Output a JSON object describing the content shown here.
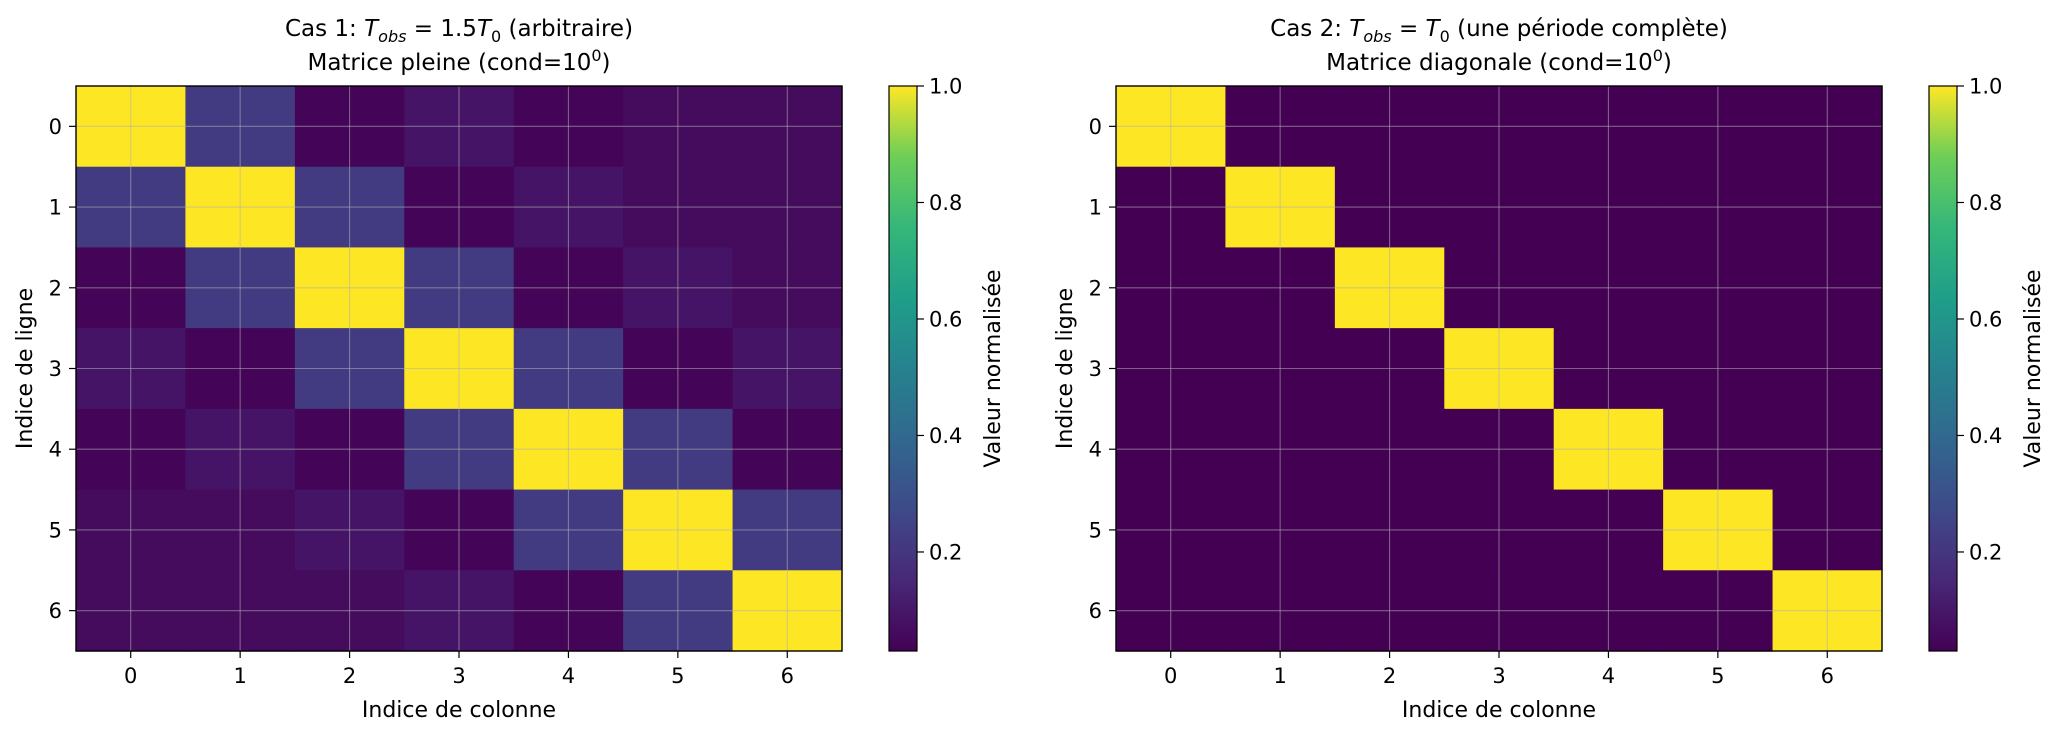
{
  "figure": {
    "background": "#ffffff",
    "grid_color": "#b0b0b0"
  },
  "chart_data": [
    {
      "type": "heatmap",
      "title": {
        "prefix": "Cas 1: ",
        "var": "T",
        "var_sub": "obs",
        "op": " = ",
        "value": "1.5",
        "var2": "T",
        "var2_sub": "0",
        "suffix": " (arbitraire)"
      },
      "subtitle": {
        "prefix": "Matrice pleine (cond=10",
        "exponent": "0",
        "suffix": ")"
      },
      "xlabel": "Indice de colonne",
      "ylabel": "Indice de ligne",
      "x_ticks": [
        "0",
        "1",
        "2",
        "3",
        "4",
        "5",
        "6"
      ],
      "y_ticks": [
        "0",
        "1",
        "2",
        "3",
        "4",
        "5",
        "6"
      ],
      "grid": true,
      "colormap": "viridis",
      "colorbar": {
        "label": "Valeur normalisée",
        "range": [
          0.03,
          1.0
        ],
        "ticks": [
          "0.2",
          "0.4",
          "0.6",
          "0.8",
          "1.0"
        ],
        "tick_values": [
          0.2,
          0.4,
          0.6,
          0.8,
          1.0
        ]
      },
      "matrix": [
        [
          1.0,
          0.22,
          0.04,
          0.09,
          0.04,
          0.06,
          0.06
        ],
        [
          0.22,
          1.0,
          0.22,
          0.04,
          0.09,
          0.06,
          0.06
        ],
        [
          0.04,
          0.22,
          1.0,
          0.22,
          0.04,
          0.09,
          0.06
        ],
        [
          0.09,
          0.04,
          0.22,
          1.0,
          0.22,
          0.04,
          0.09
        ],
        [
          0.04,
          0.09,
          0.04,
          0.22,
          1.0,
          0.22,
          0.04
        ],
        [
          0.06,
          0.06,
          0.09,
          0.04,
          0.22,
          1.0,
          0.22
        ],
        [
          0.06,
          0.06,
          0.06,
          0.09,
          0.04,
          0.22,
          1.0
        ]
      ]
    },
    {
      "type": "heatmap",
      "title": {
        "prefix": "Cas 2: ",
        "var": "T",
        "var_sub": "obs",
        "op": " = ",
        "value": "",
        "var2": "T",
        "var2_sub": "0",
        "suffix": " (une période complète)"
      },
      "subtitle": {
        "prefix": "Matrice diagonale (cond=10",
        "exponent": "0",
        "suffix": ")"
      },
      "xlabel": "Indice de colonne",
      "ylabel": "Indice de ligne",
      "x_ticks": [
        "0",
        "1",
        "2",
        "3",
        "4",
        "5",
        "6"
      ],
      "y_ticks": [
        "0",
        "1",
        "2",
        "3",
        "4",
        "5",
        "6"
      ],
      "grid": true,
      "colormap": "viridis",
      "colorbar": {
        "label": "Valeur normalisée",
        "range": [
          0.03,
          1.0
        ],
        "ticks": [
          "0.2",
          "0.4",
          "0.6",
          "0.8",
          "1.0"
        ],
        "tick_values": [
          0.2,
          0.4,
          0.6,
          0.8,
          1.0
        ]
      },
      "matrix": [
        [
          1.0,
          0.03,
          0.03,
          0.03,
          0.03,
          0.03,
          0.03
        ],
        [
          0.03,
          1.0,
          0.03,
          0.03,
          0.03,
          0.03,
          0.03
        ],
        [
          0.03,
          0.03,
          1.0,
          0.03,
          0.03,
          0.03,
          0.03
        ],
        [
          0.03,
          0.03,
          0.03,
          1.0,
          0.03,
          0.03,
          0.03
        ],
        [
          0.03,
          0.03,
          0.03,
          0.03,
          1.0,
          0.03,
          0.03
        ],
        [
          0.03,
          0.03,
          0.03,
          0.03,
          0.03,
          1.0,
          0.03
        ],
        [
          0.03,
          0.03,
          0.03,
          0.03,
          0.03,
          0.03,
          1.0
        ]
      ]
    }
  ]
}
